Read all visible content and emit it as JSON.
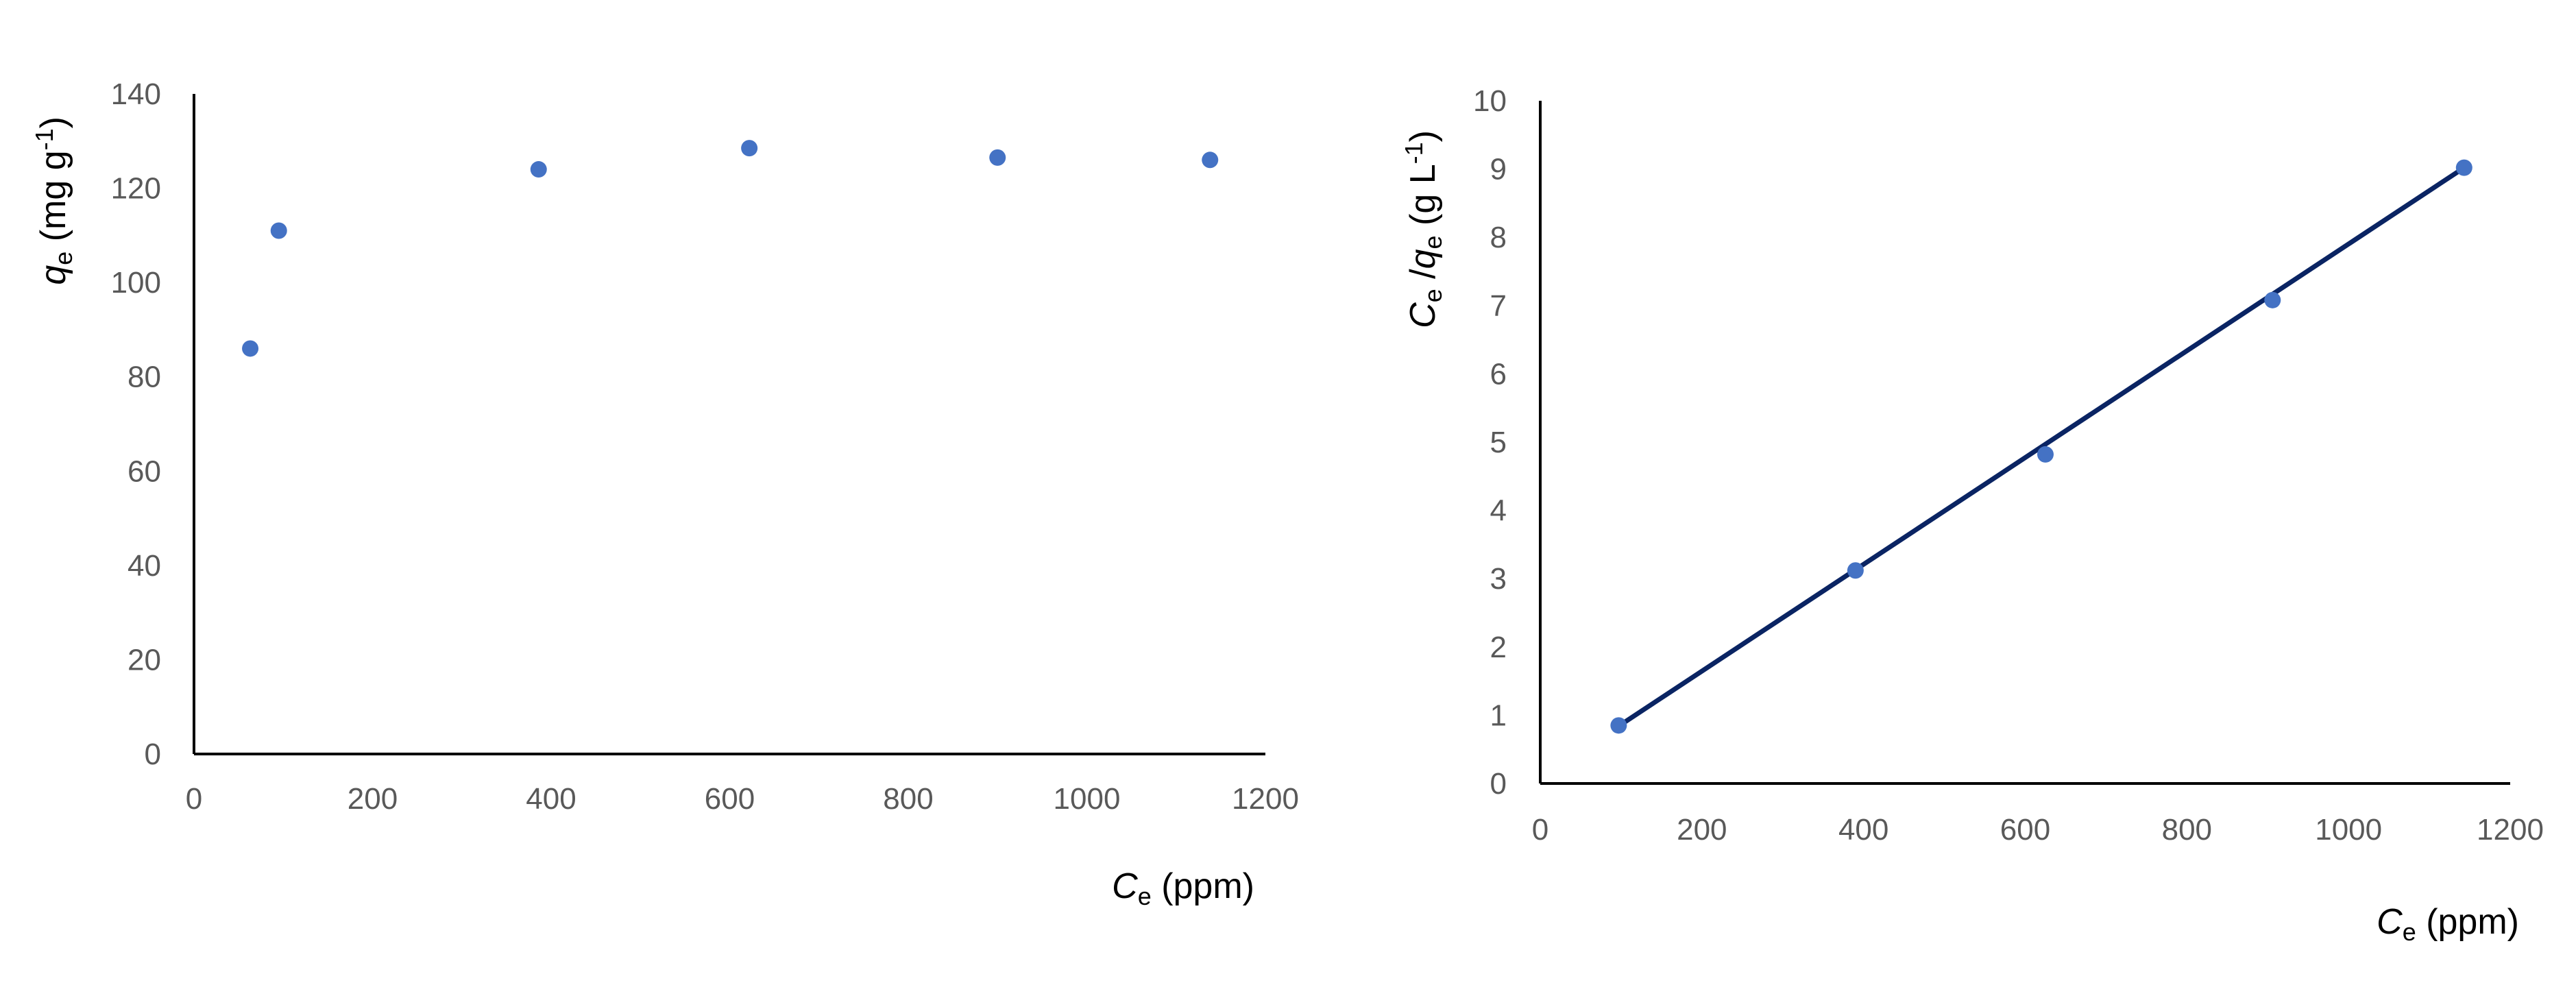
{
  "colors": {
    "marker": "#4472C4",
    "fit_line": "#0A2463",
    "axis": "#000000",
    "tick_text": "#595959"
  },
  "chart_data": [
    {
      "type": "scatter",
      "title": "",
      "xlabel": {
        "main": "C",
        "sub": "e",
        "rest": " (ppm)"
      },
      "ylabel": {
        "main": "q",
        "sub": "e",
        "rest": " (mg g",
        "sup": "-1",
        "end": ")"
      },
      "xlim": [
        0,
        1200
      ],
      "ylim": [
        0,
        140
      ],
      "xticks": [
        0,
        200,
        400,
        600,
        800,
        1000,
        1200
      ],
      "yticks": [
        0,
        20,
        40,
        60,
        80,
        100,
        120,
        140
      ],
      "grid": false,
      "legend": "none",
      "series": [
        {
          "x": [
            63,
            95,
            386,
            622,
            900,
            1138
          ],
          "y": [
            86,
            111,
            124,
            128.5,
            126.5,
            126
          ]
        }
      ]
    },
    {
      "type": "scatter",
      "title": "",
      "xlabel": {
        "main": "C",
        "sub": "e",
        "rest": " (ppm)"
      },
      "ylabel": {
        "main": "C",
        "sub": "e",
        "mid": " /",
        "main2": "q",
        "sub2": "e",
        "rest": " (g L",
        "sup": "-1",
        "end": ")"
      },
      "xlim": [
        0,
        1200
      ],
      "ylim": [
        0,
        10
      ],
      "xticks": [
        0,
        200,
        400,
        600,
        800,
        1000,
        1200
      ],
      "yticks": [
        0,
        1,
        2,
        3,
        4,
        5,
        6,
        7,
        8,
        9,
        10
      ],
      "grid": false,
      "legend": "none",
      "series": [
        {
          "x": [
            97,
            390,
            625,
            906,
            1143
          ],
          "y": [
            0.85,
            3.12,
            4.82,
            7.08,
            9.02
          ]
        }
      ],
      "trendline": {
        "x": [
          97,
          1143
        ],
        "y": [
          0.84,
          9.02
        ]
      }
    }
  ]
}
